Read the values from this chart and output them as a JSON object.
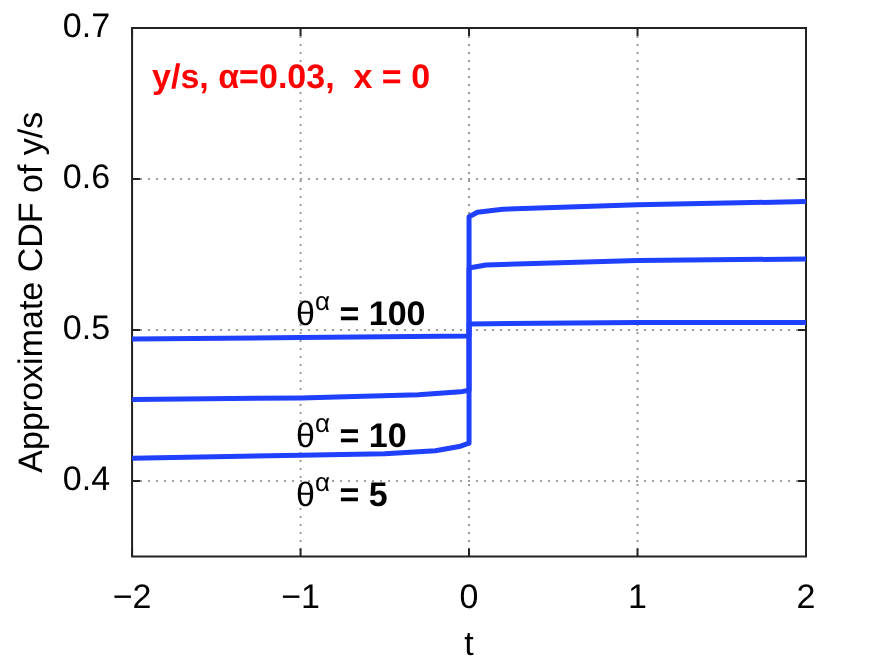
{
  "chart_data": {
    "type": "line",
    "title": "y/s, α=0.03,  x = 0",
    "xlabel": "t",
    "ylabel": "Approximate CDF of y/s",
    "xlim": [
      -2,
      2
    ],
    "xticks": [
      {
        "value": -2,
        "label": "−2"
      },
      {
        "value": -1,
        "label": "−1"
      },
      0,
      1,
      2
    ],
    "ylim": [
      0.35,
      0.7
    ],
    "yticks": [
      0.4,
      0.5,
      0.6,
      0.7
    ],
    "grid": true,
    "legend": false,
    "marker": "none",
    "line_style": "solid",
    "series": [
      {
        "name": "θ$^{α}$ = 100",
        "color": "#2040ff",
        "x": [
          -2,
          -1,
          0,
          0,
          1,
          2
        ],
        "values": [
          0.494,
          0.495,
          0.496,
          0.504,
          0.505,
          0.505
        ]
      },
      {
        "name": "θ$^{α}$ = 10",
        "color": "#2040ff",
        "x": [
          -2,
          -1,
          -0.3,
          -0.05,
          0,
          0,
          0.1,
          1,
          2
        ],
        "values": [
          0.454,
          0.455,
          0.457,
          0.459,
          0.46,
          0.541,
          0.543,
          0.546,
          0.547
        ]
      },
      {
        "name": "θ$^{α}$ = 5",
        "color": "#2040ff",
        "x": [
          -2,
          -1,
          -0.5,
          -0.2,
          -0.05,
          0,
          0,
          0.05,
          0.2,
          1,
          2
        ],
        "values": [
          0.415,
          0.417,
          0.418,
          0.42,
          0.423,
          0.425,
          0.575,
          0.578,
          0.58,
          0.583,
          0.585
        ]
      }
    ]
  }
}
